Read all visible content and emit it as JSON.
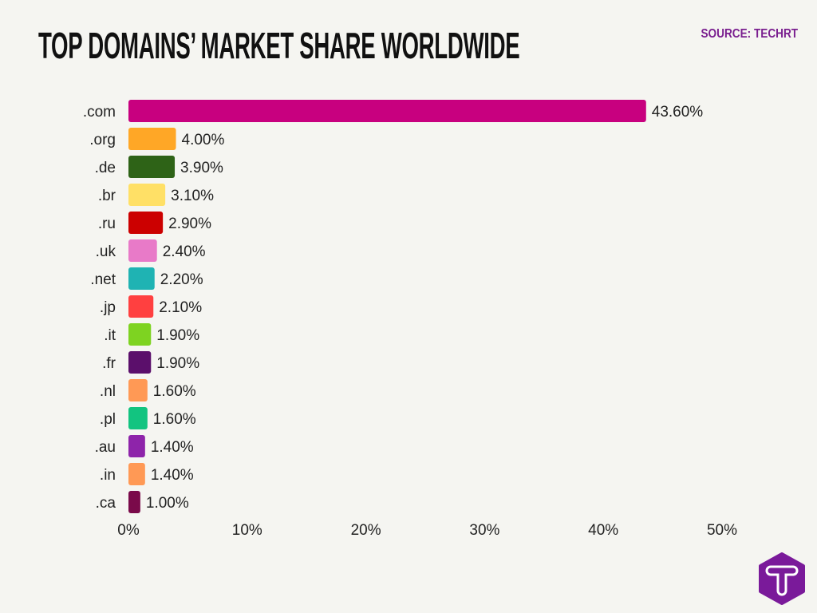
{
  "title": "TOP DOMAINS’ MARKET SHARE WORLDWIDE",
  "source": "SOURCE: TECHRT",
  "logo": {
    "text": "T",
    "color": "#7a1a9a"
  },
  "chart_data": {
    "type": "bar",
    "orientation": "horizontal",
    "categories": [
      ".com",
      ".org",
      ".de",
      ".br",
      ".ru",
      ".uk",
      ".net",
      ".jp",
      ".it",
      ".fr",
      ".nl",
      ".pl",
      ".au",
      ".in",
      ".ca"
    ],
    "values": [
      43.6,
      4.0,
      3.9,
      3.1,
      2.9,
      2.4,
      2.2,
      2.1,
      1.9,
      1.9,
      1.6,
      1.6,
      1.4,
      1.4,
      1.0
    ],
    "data_labels": [
      "43.60%",
      "4.00%",
      "3.90%",
      "3.10%",
      "2.90%",
      "2.40%",
      "2.20%",
      "2.10%",
      "1.90%",
      "1.90%",
      "1.60%",
      "1.60%",
      "1.40%",
      "1.40%",
      "1.00%"
    ],
    "colors": [
      "#c8007f",
      "#ffa726",
      "#2e6317",
      "#ffe066",
      "#cc0000",
      "#e87ac8",
      "#1fb3b3",
      "#ff4040",
      "#7ed321",
      "#5b0f6b",
      "#ff9955",
      "#12c480",
      "#8e24aa",
      "#ff9955",
      "#7a0a4a"
    ],
    "xlim": [
      0,
      50
    ],
    "xticks": [
      "0%",
      "10%",
      "20%",
      "30%",
      "40%",
      "50%"
    ],
    "grid": false,
    "legend": "none"
  }
}
